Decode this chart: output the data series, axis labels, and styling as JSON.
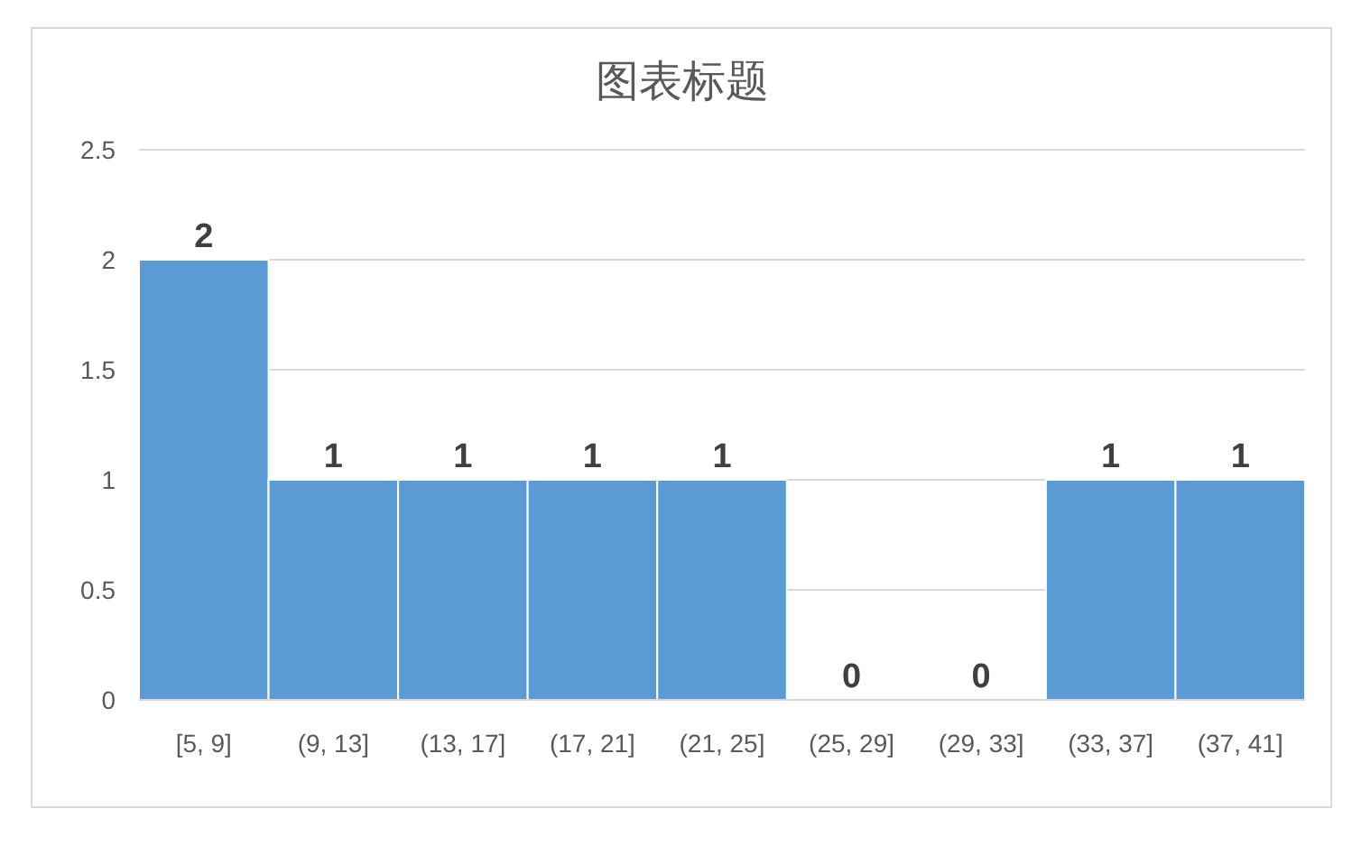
{
  "chart_data": {
    "type": "bar",
    "title": "图表标题",
    "categories": [
      "[5, 9]",
      "(9, 13]",
      "(13, 17]",
      "(17, 21]",
      "(21, 25]",
      "(25, 29]",
      "(29, 33]",
      "(33, 37]",
      "(37, 41]"
    ],
    "values": [
      2,
      1,
      1,
      1,
      1,
      0,
      0,
      1,
      1
    ],
    "color": "#5b9bd5",
    "ylim": [
      0,
      2.5
    ],
    "yticks": [
      0,
      0.5,
      1,
      1.5,
      2,
      2.5
    ],
    "grid": "y",
    "data_labels": true
  }
}
